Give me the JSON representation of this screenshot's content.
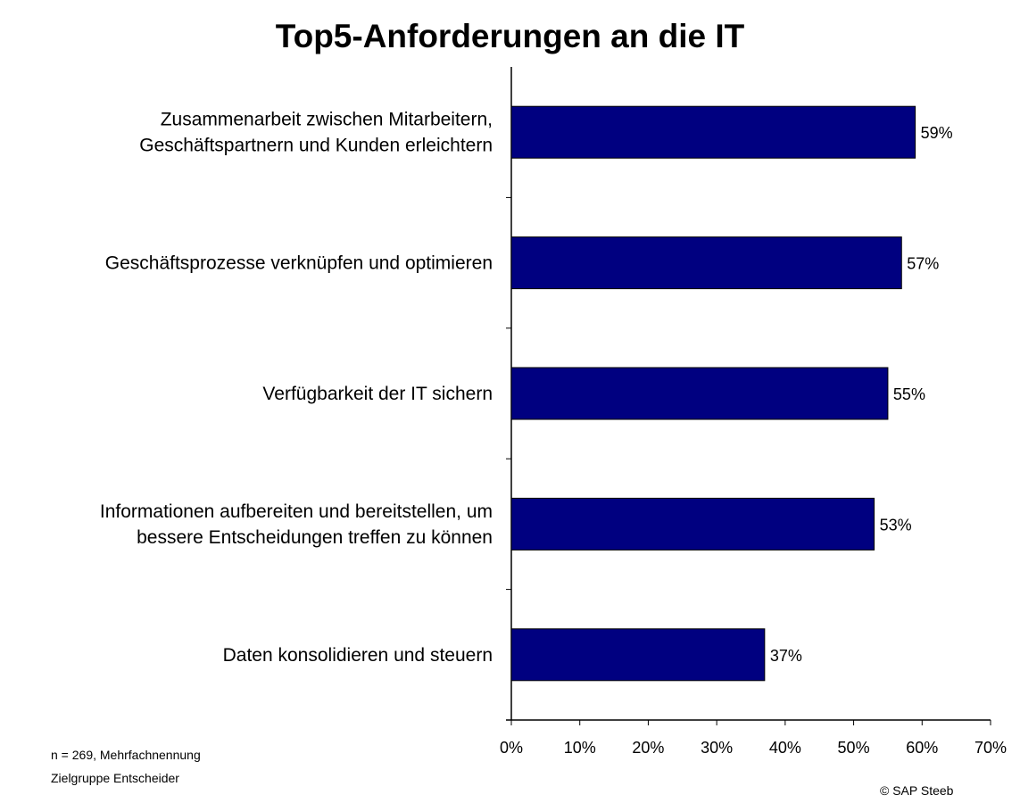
{
  "chart_data": {
    "type": "bar",
    "orientation": "horizontal",
    "title": "Top5-Anforderungen an die IT",
    "categories": [
      [
        "Zusammenarbeit zwischen Mitarbeitern,",
        "Geschäftspartnern und Kunden erleichtern"
      ],
      [
        "Geschäftsprozesse verknüpfen und optimieren"
      ],
      [
        "Verfügbarkeit der IT sichern"
      ],
      [
        "Informationen aufbereiten und bereitstellen, um",
        "bessere Entscheidungen treffen zu können"
      ],
      [
        "Daten konsolidieren und steuern"
      ]
    ],
    "values": [
      59,
      57,
      55,
      53,
      37
    ],
    "data_labels": [
      "59%",
      "57%",
      "55%",
      "53%",
      "37%"
    ],
    "xlim": [
      0,
      70
    ],
    "x_ticks": [
      "0%",
      "10%",
      "20%",
      "30%",
      "40%",
      "50%",
      "60%",
      "70%"
    ],
    "grid": false,
    "bar_color": "#000080"
  },
  "footnote": {
    "line1": "n = 269, Mehrfachnennung",
    "line2": "Zielgruppe Entscheider"
  },
  "copyright": "© SAP Steeb"
}
